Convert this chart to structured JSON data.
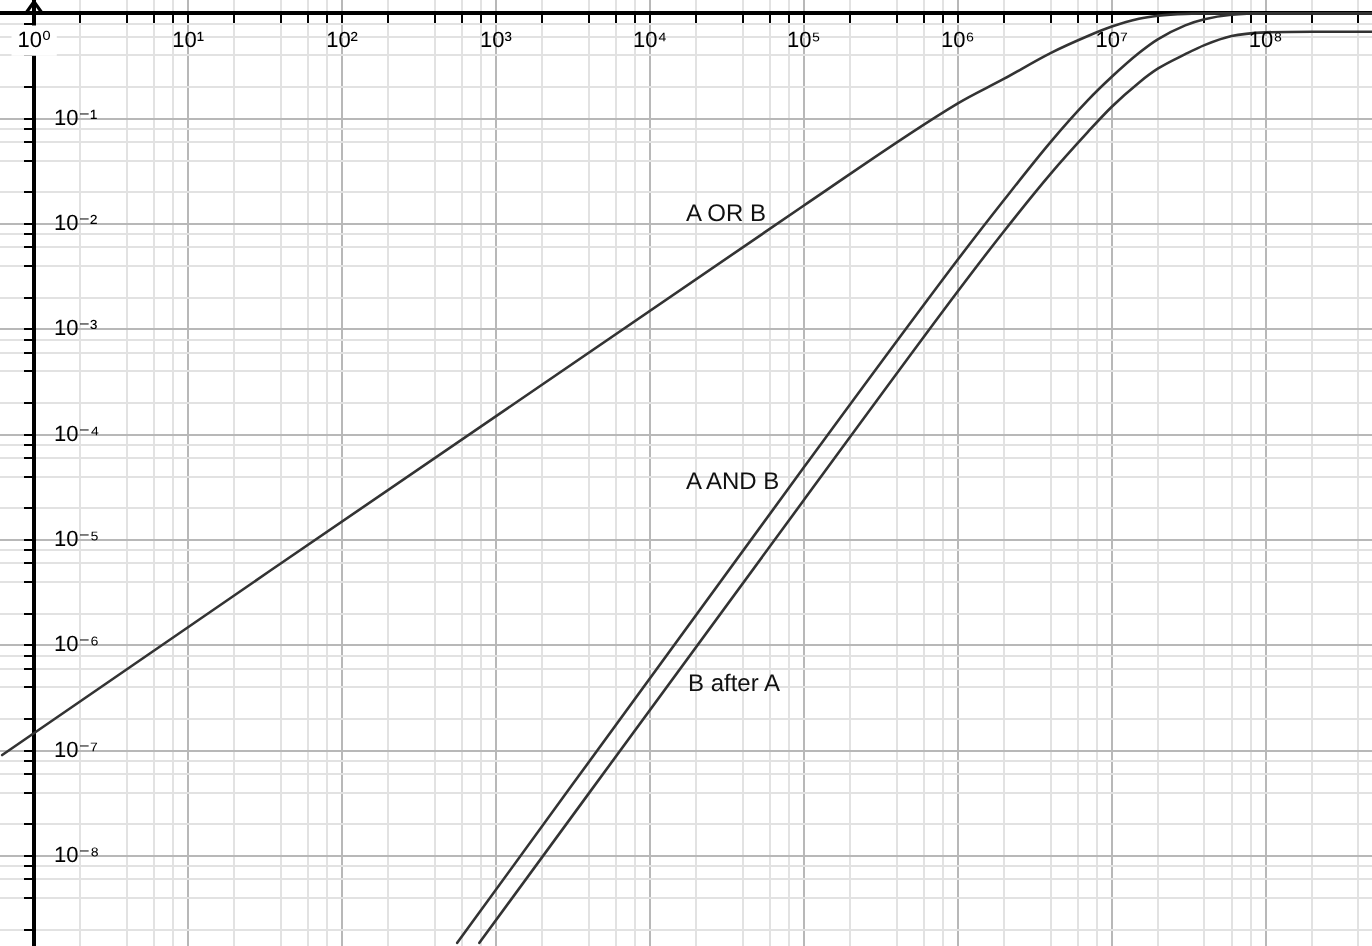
{
  "chart_data": {
    "type": "line",
    "log": "xy",
    "grid": true,
    "legend": false,
    "marker": "none",
    "line_style": "solid",
    "xlim": [
      0.62,
      490000000.0
    ],
    "ylim": [
      1.4e-09,
      1.34
    ],
    "xticks": [
      {
        "value": 1,
        "label": "10⁰"
      },
      {
        "value": 2,
        "label": null
      },
      {
        "value": 4,
        "label": null
      },
      {
        "value": 6,
        "label": null
      },
      {
        "value": 8,
        "label": null
      },
      {
        "value": 10,
        "label": "10¹"
      },
      {
        "value": 20,
        "label": null
      },
      {
        "value": 40,
        "label": null
      },
      {
        "value": 60,
        "label": null
      },
      {
        "value": 80,
        "label": null
      },
      {
        "value": 100,
        "label": "10²"
      },
      {
        "value": 200,
        "label": null
      },
      {
        "value": 400,
        "label": null
      },
      {
        "value": 600,
        "label": null
      },
      {
        "value": 800,
        "label": null
      },
      {
        "value": 1000,
        "label": "10³"
      },
      {
        "value": 2000,
        "label": null
      },
      {
        "value": 4000,
        "label": null
      },
      {
        "value": 6000,
        "label": null
      },
      {
        "value": 8000,
        "label": null
      },
      {
        "value": 10000,
        "label": "10⁴"
      },
      {
        "value": 20000,
        "label": null
      },
      {
        "value": 40000,
        "label": null
      },
      {
        "value": 60000,
        "label": null
      },
      {
        "value": 80000,
        "label": null
      },
      {
        "value": 100000,
        "label": "10⁵"
      },
      {
        "value": 200000,
        "label": null
      },
      {
        "value": 400000,
        "label": null
      },
      {
        "value": 600000,
        "label": null
      },
      {
        "value": 800000,
        "label": null
      },
      {
        "value": 1000000,
        "label": "10⁶"
      },
      {
        "value": 2000000,
        "label": null
      },
      {
        "value": 4000000,
        "label": null
      },
      {
        "value": 6000000,
        "label": null
      },
      {
        "value": 8000000,
        "label": null
      },
      {
        "value": 10000000,
        "label": "10⁷"
      },
      {
        "value": 20000000,
        "label": null
      },
      {
        "value": 40000000,
        "label": null
      },
      {
        "value": 60000000,
        "label": null
      },
      {
        "value": 80000000,
        "label": null
      },
      {
        "value": 100000000,
        "label": "10⁸"
      },
      {
        "value": 200000000,
        "label": null
      },
      {
        "value": 400000000,
        "label": null
      }
    ],
    "yticks": [
      {
        "value": 2e-09,
        "label": null
      },
      {
        "value": 4e-09,
        "label": null
      },
      {
        "value": 6e-09,
        "label": null
      },
      {
        "value": 8e-09,
        "label": null
      },
      {
        "value": 1e-08,
        "label": "10⁻⁸"
      },
      {
        "value": 2e-08,
        "label": null
      },
      {
        "value": 4e-08,
        "label": null
      },
      {
        "value": 6e-08,
        "label": null
      },
      {
        "value": 8e-08,
        "label": null
      },
      {
        "value": 1e-07,
        "label": "10⁻⁷"
      },
      {
        "value": 2e-07,
        "label": null
      },
      {
        "value": 4e-07,
        "label": null
      },
      {
        "value": 6e-07,
        "label": null
      },
      {
        "value": 8e-07,
        "label": null
      },
      {
        "value": 1e-06,
        "label": "10⁻⁶"
      },
      {
        "value": 2e-06,
        "label": null
      },
      {
        "value": 4e-06,
        "label": null
      },
      {
        "value": 6e-06,
        "label": null
      },
      {
        "value": 8e-06,
        "label": null
      },
      {
        "value": 1e-05,
        "label": "10⁻⁵"
      },
      {
        "value": 2e-05,
        "label": null
      },
      {
        "value": 4e-05,
        "label": null
      },
      {
        "value": 6e-05,
        "label": null
      },
      {
        "value": 8e-05,
        "label": null
      },
      {
        "value": 0.0001,
        "label": "10⁻⁴"
      },
      {
        "value": 0.0002,
        "label": null
      },
      {
        "value": 0.0004,
        "label": null
      },
      {
        "value": 0.0006,
        "label": null
      },
      {
        "value": 0.0008,
        "label": null
      },
      {
        "value": 0.001,
        "label": "10⁻³"
      },
      {
        "value": 0.002,
        "label": null
      },
      {
        "value": 0.004,
        "label": null
      },
      {
        "value": 0.006,
        "label": null
      },
      {
        "value": 0.008,
        "label": null
      },
      {
        "value": 0.01,
        "label": "10⁻²"
      },
      {
        "value": 0.02,
        "label": null
      },
      {
        "value": 0.04,
        "label": null
      },
      {
        "value": 0.06,
        "label": null
      },
      {
        "value": 0.08,
        "label": null
      },
      {
        "value": 0.1,
        "label": "10⁻¹"
      },
      {
        "value": 0.2,
        "label": null
      },
      {
        "value": 0.4,
        "label": null
      },
      {
        "value": 0.6,
        "label": null
      },
      {
        "value": 0.8,
        "label": null
      }
    ],
    "series": [
      {
        "name": "A OR B",
        "color": "#333333",
        "x": [
          0.62,
          100000,
          1000000,
          2000000,
          4000000,
          7000000,
          10000000,
          15000000,
          20000000,
          30000000,
          50000000,
          100000000,
          490000000
        ],
        "values": [
          9.1e-08,
          0.015,
          0.14,
          0.24,
          0.42,
          0.61,
          0.75,
          0.89,
          0.95,
          0.99,
          1,
          1,
          1
        ]
      },
      {
        "name": "A AND B",
        "color": "#333333",
        "x": [
          560,
          100000,
          1000000,
          2000000,
          4000000,
          7000000,
          10000000,
          15000000,
          20000000,
          30000000,
          40000000,
          60000000,
          100000000,
          490000000
        ],
        "values": [
          1.5e-09,
          4.9e-05,
          0.0046,
          0.017,
          0.06,
          0.15,
          0.25,
          0.42,
          0.57,
          0.77,
          0.88,
          0.97,
          1,
          1
        ]
      },
      {
        "name": "B after A",
        "color": "#333333",
        "x": [
          780,
          100000,
          1000000,
          2000000,
          4000000,
          7000000,
          10000000,
          15000000,
          20000000,
          30000000,
          40000000,
          60000000,
          100000000,
          200000000,
          490000000
        ],
        "values": [
          1.5e-09,
          2.4e-05,
          0.0023,
          0.0086,
          0.03,
          0.075,
          0.13,
          0.22,
          0.3,
          0.41,
          0.5,
          0.61,
          0.66,
          0.67,
          0.67
        ]
      }
    ]
  }
}
